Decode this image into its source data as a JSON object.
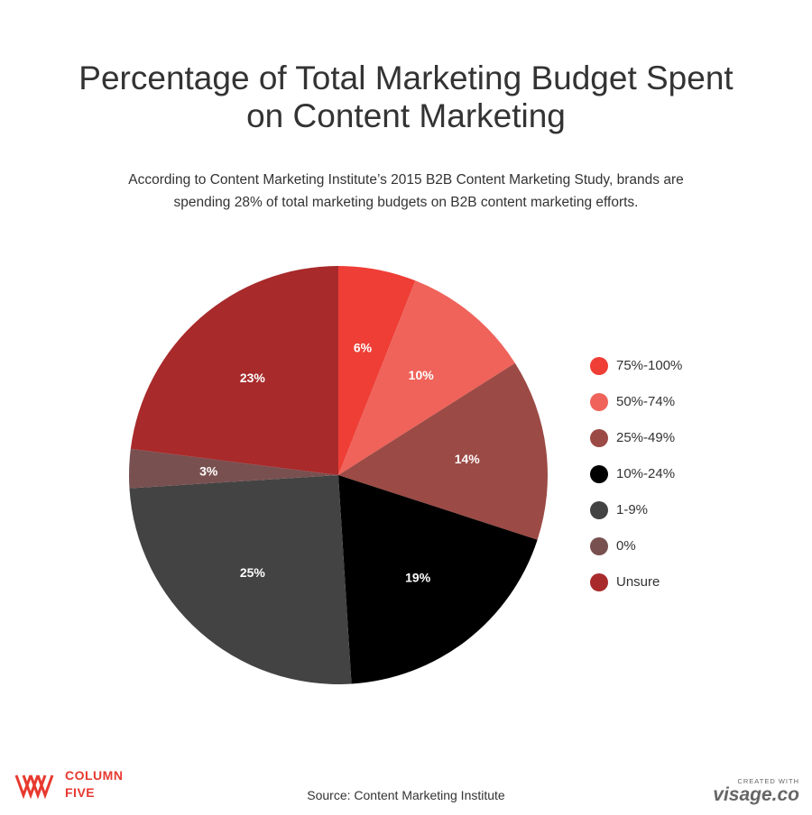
{
  "header": {
    "title_line1": "Percentage of Total Marketing Budget Spent",
    "title_line2": "on Content Marketing",
    "subtitle_line1": "According to Content Marketing Institute’s 2015 B2B Content Marketing Study, brands are",
    "subtitle_line2": "spending 28% of total marketing budgets on B2B content marketing efforts."
  },
  "chart_data": {
    "type": "pie",
    "title": "Percentage of Total Marketing Budget Spent on Content Marketing",
    "legend_position": "right",
    "slices": [
      {
        "label": "75%-100%",
        "value": 6,
        "display": "6%",
        "color": "#ee3e36"
      },
      {
        "label": "50%-74%",
        "value": 10,
        "display": "10%",
        "color": "#ef635a"
      },
      {
        "label": "25%-49%",
        "value": 14,
        "display": "14%",
        "color": "#9c4a45"
      },
      {
        "label": "10%-24%",
        "value": 19,
        "display": "19%",
        "color": "#000000"
      },
      {
        "label": "1-9%",
        "value": 25,
        "display": "25%",
        "color": "#434343"
      },
      {
        "label": "0%",
        "value": 3,
        "display": "3%",
        "color": "#795050"
      },
      {
        "label": "Unsure",
        "value": 23,
        "display": "23%",
        "color": "#a82a2b"
      }
    ]
  },
  "footer": {
    "brand_line1": "COLUMN",
    "brand_line2": "FIVE",
    "source": "Source: Content Marketing Institute",
    "credit_small": "CREATED WITH",
    "credit_big": "visage.co"
  },
  "colors": {
    "brand": "#e7392f",
    "text": "#333333"
  },
  "icons": {
    "brand_logo": "column-five-logo-icon"
  }
}
